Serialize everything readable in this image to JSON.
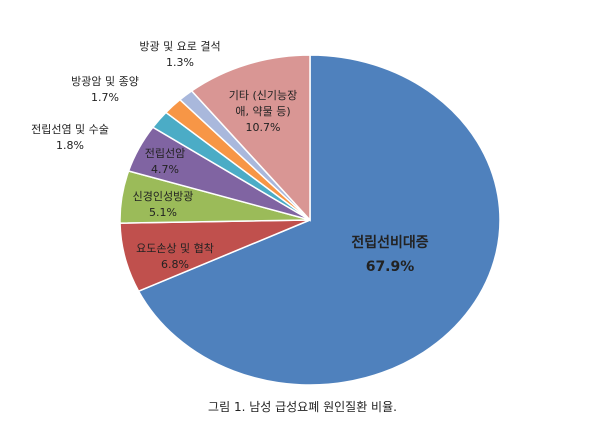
{
  "chart_data": {
    "type": "pie",
    "categories": [
      "전립선비대증",
      "요도손상 및 협착",
      "신경인성방광",
      "전립선암",
      "전립선염 및 수술",
      "방광암 및 종양",
      "방광 및 요로 결석",
      "기타 (신기능장애, 약물 등)"
    ],
    "values": [
      67.9,
      6.8,
      5.1,
      4.7,
      1.8,
      1.7,
      1.3,
      10.7
    ],
    "value_labels": [
      "67.9%",
      "6.8%",
      "5.1%",
      "4.7%",
      "1.8%",
      "1.7%",
      "1.3%",
      "10.7%"
    ],
    "colors": [
      "#4f81bd",
      "#c0504d",
      "#9bbb59",
      "#8064a2",
      "#4bacc6",
      "#f79646",
      "#a9b8dc",
      "#d99694"
    ],
    "caption": "그림 1. 남성 급성요폐 원인질환 비율."
  }
}
